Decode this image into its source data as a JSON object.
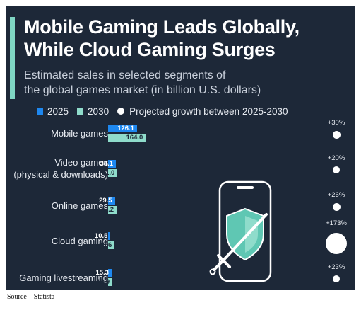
{
  "title_line1": "Mobile Gaming Leads Globally,",
  "title_line2": "While Cloud Gaming Surges",
  "subtitle_line1": "Estimated sales in selected segments of",
  "subtitle_line2": "the global games market (in billion U.S. dollars)",
  "legend": {
    "series_2025": "2025",
    "series_2030": "2030",
    "growth": "Projected growth between 2025-2030"
  },
  "colors": {
    "background": "#1d2838",
    "series_2025": "#1e88f0",
    "series_2030": "#8fdccb",
    "growth_dot": "#ffffff"
  },
  "chart_data": {
    "type": "bar",
    "orientation": "horizontal",
    "categories": [
      [
        "Mobile games"
      ],
      [
        "Video games",
        "(physical & downloads)"
      ],
      [
        "Online games"
      ],
      [
        "Cloud gaming"
      ],
      [
        "Gaming livestreaming"
      ]
    ],
    "series": [
      {
        "name": "2025",
        "values": [
          126.1,
          34.1,
          29.5,
          10.5,
          15.3
        ]
      },
      {
        "name": "2030",
        "values": [
          164.0,
          41.0,
          37.2,
          28.6,
          18.9
        ]
      }
    ],
    "value_labels": {
      "2025": [
        "126.1",
        "34.1",
        "29.5",
        "10.5",
        "15.3"
      ],
      "2030": [
        "164.0",
        "41.0",
        "37.2",
        "28.6",
        "18.9"
      ]
    },
    "growth_pct": [
      30,
      20,
      26,
      173,
      23
    ],
    "growth_labels": [
      "+30%",
      "+20%",
      "+26%",
      "+173%",
      "+23%"
    ],
    "xlim": [
      0,
      164
    ],
    "grid": false,
    "legend_position": "top"
  },
  "source": "Source – Statista"
}
